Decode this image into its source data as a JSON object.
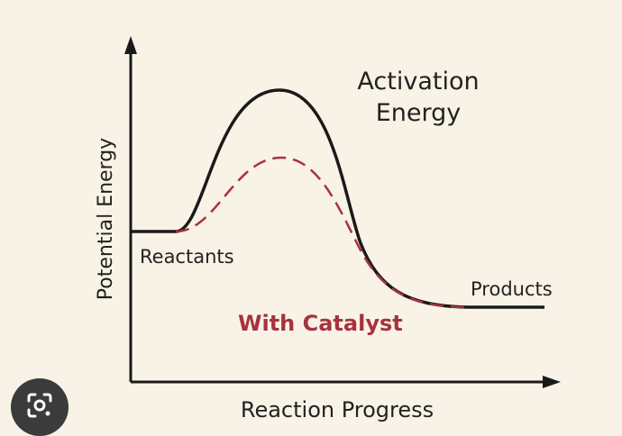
{
  "diagram": {
    "labels": {
      "activation_line1": "Activation",
      "activation_line2": "Energy",
      "reactants": "Reactants",
      "products": "Products",
      "with_catalyst": "With Catalyst",
      "x_axis": "Reaction Progress",
      "y_axis": "Potential Energy"
    },
    "curves": [
      {
        "name": "without-catalyst",
        "style": "solid",
        "color": "#1a1a1a"
      },
      {
        "name": "with-catalyst",
        "style": "dashed",
        "color": "#a8323f"
      }
    ],
    "colors": {
      "background": "#f8f3e6",
      "axis": "#1a1a1a",
      "text": "#222222",
      "catalyst": "#a8323f"
    }
  },
  "overlay": {
    "icon": "visual-search-icon"
  }
}
